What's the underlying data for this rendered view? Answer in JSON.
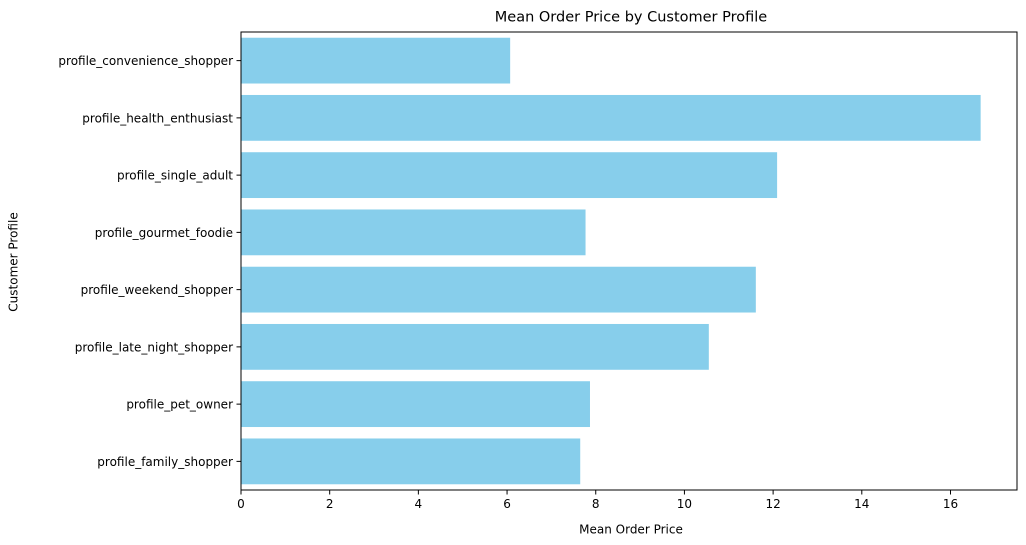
{
  "chart_data": {
    "type": "bar",
    "orientation": "horizontal",
    "title": "Mean Order Price by Customer Profile",
    "xlabel": "Mean Order Price",
    "ylabel": "Customer Profile",
    "categories": [
      "profile_convenience_shopper",
      "profile_health_enthusiast",
      "profile_single_adult",
      "profile_gourmet_foodie",
      "profile_weekend_shopper",
      "profile_late_night_shopper",
      "profile_pet_owner",
      "profile_family_shopper"
    ],
    "values": [
      6.07,
      16.68,
      12.09,
      7.77,
      11.61,
      10.55,
      7.87,
      7.65
    ],
    "xlim": [
      0,
      17.5
    ],
    "xticks": [
      0,
      2,
      4,
      6,
      8,
      10,
      12,
      14,
      16
    ],
    "grid": false,
    "legend": "none",
    "colors": {
      "bar": "#87CEEB",
      "axis": "#000000",
      "background": "#ffffff"
    }
  }
}
